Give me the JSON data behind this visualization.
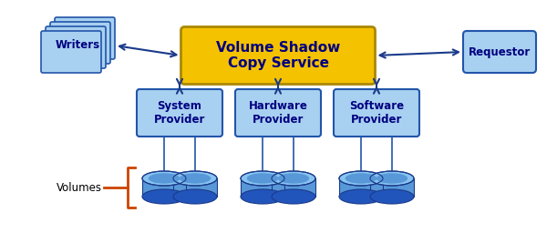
{
  "bg_color": "#ffffff",
  "box_light_blue": "#a8d0f0",
  "box_blue_border": "#2255aa",
  "box_yellow": "#f5c200",
  "box_yellow_border": "#aa8800",
  "text_dark": "#000080",
  "arrow_color": "#1a3a8a",
  "title": "Volume Shadow\nCopy Service",
  "writers_label": "Writers",
  "requestor_label": "Requestor",
  "provider_labels": [
    "System\nProvider",
    "Hardware\nProvider",
    "Software\nProvider"
  ],
  "volumes_label": "Volumes",
  "disk_top_color": "#88c4f0",
  "disk_mid_color": "#5898d8",
  "disk_bot_color": "#2255bb",
  "disk_border": "#1a3a8a",
  "orange_brace": "#cc4400",
  "figsize": [
    6.11,
    2.56
  ],
  "dpi": 100,
  "xlim": [
    0,
    611
  ],
  "ylim": [
    0,
    256
  ]
}
